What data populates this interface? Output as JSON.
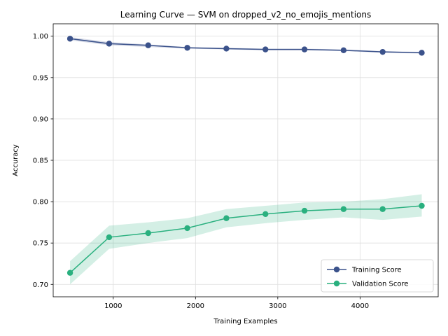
{
  "chart_data": {
    "type": "line",
    "title": "Learning Curve — SVM on dropped_v2_no_emojis_mentions",
    "xlabel": "Training Examples",
    "ylabel": "Accuracy",
    "xlim": [
      270,
      4950
    ],
    "ylim": [
      0.685,
      1.015
    ],
    "x_ticks": [
      1000,
      2000,
      3000,
      4000
    ],
    "y_ticks": [
      0.7,
      0.75,
      0.8,
      0.85,
      0.9,
      0.95,
      1.0
    ],
    "x_tick_labels": [
      "1000",
      "2000",
      "3000",
      "4000"
    ],
    "y_tick_labels": [
      "0.70",
      "0.75",
      "0.80",
      "0.85",
      "0.90",
      "0.95",
      "1.00"
    ],
    "grid": true,
    "legend_position": "lower-right",
    "x": [
      475,
      950,
      1425,
      1900,
      2375,
      2850,
      3325,
      3800,
      4275,
      4750
    ],
    "series": [
      {
        "name": "Training Score",
        "color": "#3b528b",
        "values": [
          0.997,
          0.991,
          0.989,
          0.986,
          0.985,
          0.984,
          0.984,
          0.983,
          0.981,
          0.98
        ],
        "lower": [
          0.995,
          0.989,
          0.987,
          0.985,
          0.984,
          0.983,
          0.983,
          0.982,
          0.98,
          0.979
        ],
        "upper": [
          0.999,
          0.993,
          0.99,
          0.987,
          0.986,
          0.985,
          0.985,
          0.984,
          0.982,
          0.981
        ]
      },
      {
        "name": "Validation Score",
        "color": "#2ab07f",
        "values": [
          0.714,
          0.757,
          0.762,
          0.768,
          0.78,
          0.785,
          0.789,
          0.791,
          0.791,
          0.795
        ],
        "lower": [
          0.7,
          0.743,
          0.75,
          0.756,
          0.769,
          0.774,
          0.778,
          0.781,
          0.778,
          0.782
        ],
        "upper": [
          0.728,
          0.771,
          0.775,
          0.78,
          0.791,
          0.795,
          0.799,
          0.8,
          0.803,
          0.809
        ]
      }
    ]
  }
}
